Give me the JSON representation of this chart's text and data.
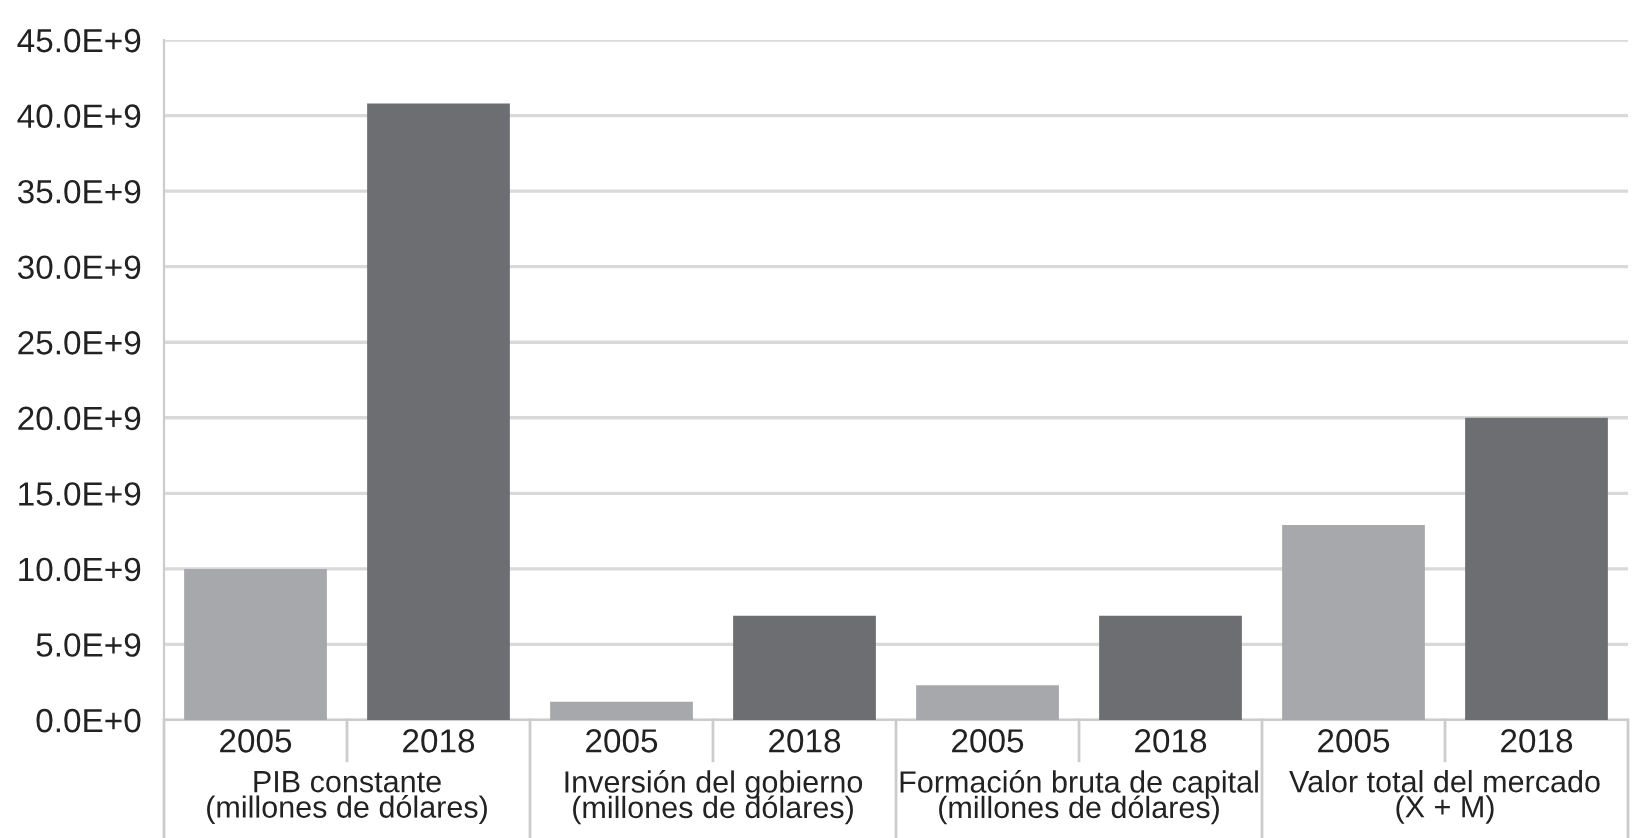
{
  "chart_data": {
    "type": "bar",
    "categories": [
      "PIB constante\n(millones de dólares)",
      "Inversión del gobierno\n(millones de dólares)",
      "Formación bruta de capital\n(millones de dólares)",
      "Valor total del mercado\n(X + M)"
    ],
    "series": [
      {
        "name": "2005",
        "color": "#a7a8ab",
        "values": [
          10000000000.0,
          1200000000.0,
          2300000000.0,
          12900000000.0
        ]
      },
      {
        "name": "2018",
        "color": "#6d6e71",
        "values": [
          40800000000.0,
          6900000000.0,
          6900000000.0,
          20000000000.0
        ]
      }
    ],
    "ylim": [
      0,
      45000000000.0
    ],
    "yticks": [
      {
        "value": 0,
        "label": "0.0E+0"
      },
      {
        "value": 5000000000.0,
        "label": "5.0E+9"
      },
      {
        "value": 10000000000.0,
        "label": "10.0E+9"
      },
      {
        "value": 15000000000.0,
        "label": "15.0E+9"
      },
      {
        "value": 20000000000.0,
        "label": "20.0E+9"
      },
      {
        "value": 25000000000.0,
        "label": "25.0E+9"
      },
      {
        "value": 30000000000.0,
        "label": "30.0E+9"
      },
      {
        "value": 35000000000.0,
        "label": "35.0E+9"
      },
      {
        "value": 40000000000.0,
        "label": "40.0E+9"
      },
      {
        "value": 45000000000.0,
        "label": "45.0E+9"
      }
    ],
    "grid": "y",
    "legend": false
  }
}
